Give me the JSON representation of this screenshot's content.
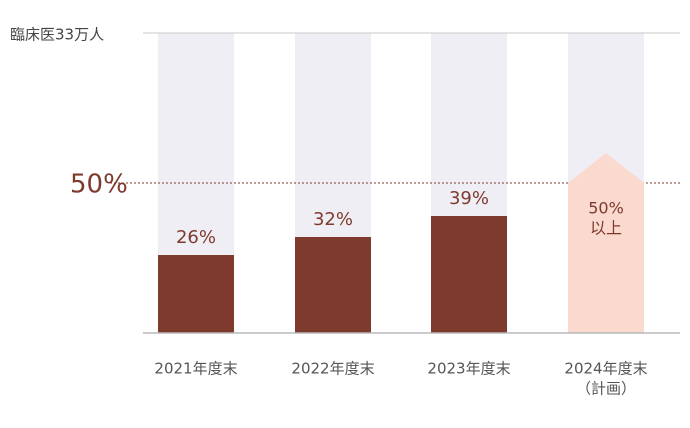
{
  "chart_data": {
    "type": "bar",
    "categories": [
      "2021年度末",
      "2022年度末",
      "2023年度末",
      [
        "2024年度末",
        "（計画）"
      ]
    ],
    "values": [
      26,
      32,
      39,
      50
    ],
    "value_labels": [
      "26%",
      "32%",
      "39%",
      [
        "50%",
        "以上"
      ]
    ],
    "colors": [
      "#7e3b2d",
      "#7e3b2d",
      "#7e3b2d",
      "#fad9cf"
    ],
    "track_color": "#efeef4",
    "ylim": [
      0,
      100
    ],
    "yticks": [
      {
        "value": 100,
        "label": "臨床医33万人"
      },
      {
        "value": 50,
        "label": "50%"
      }
    ]
  }
}
